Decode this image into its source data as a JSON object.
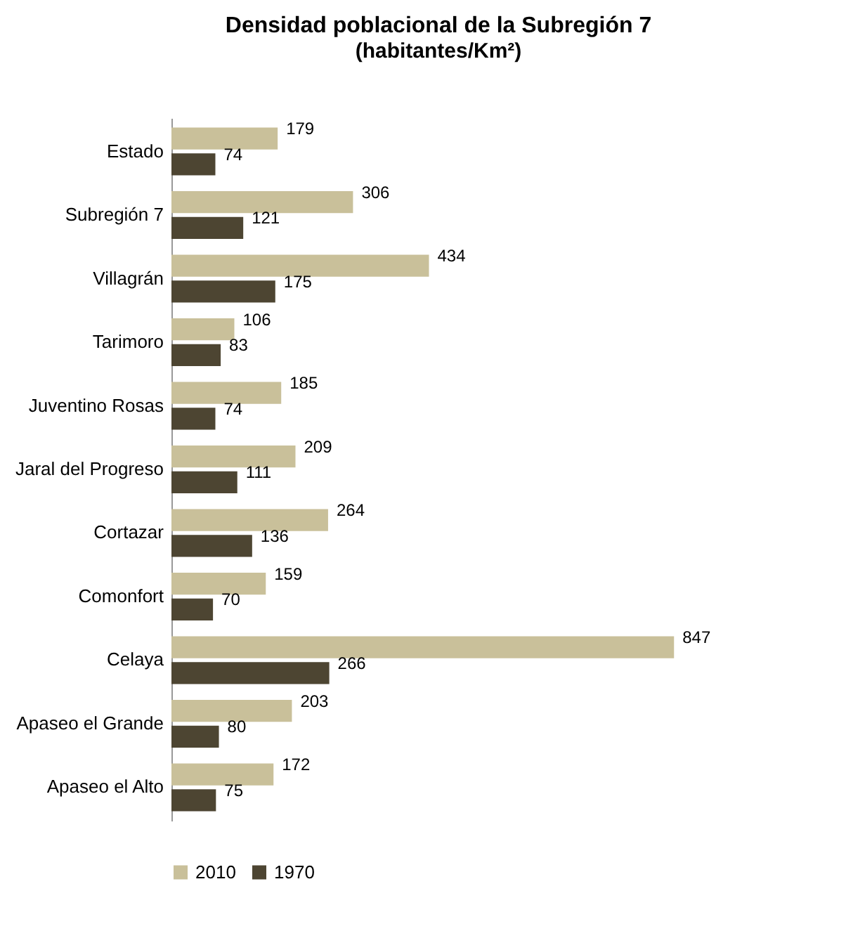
{
  "chart_data": {
    "type": "bar",
    "orientation": "horizontal",
    "title": "Densidad poblacional de la Subregión 7",
    "subtitle": "(habitantes/Km²)",
    "categories": [
      "Estado",
      "Subregión 7",
      "Villagrán",
      "Tarimoro",
      "Juventino Rosas",
      "Jaral del Progreso",
      "Cortazar",
      "Comonfort",
      "Celaya",
      "Apaseo el Grande",
      "Apaseo el Alto"
    ],
    "series": [
      {
        "name": "2010",
        "color": "#c9c09a",
        "values": [
          179,
          306,
          434,
          106,
          185,
          209,
          264,
          159,
          847,
          203,
          172
        ]
      },
      {
        "name": "1970",
        "color": "#4d4532",
        "values": [
          74,
          121,
          175,
          83,
          74,
          111,
          136,
          70,
          266,
          80,
          75
        ]
      }
    ],
    "data_labels": true,
    "legend": "bottom",
    "tick_labels": "y"
  }
}
